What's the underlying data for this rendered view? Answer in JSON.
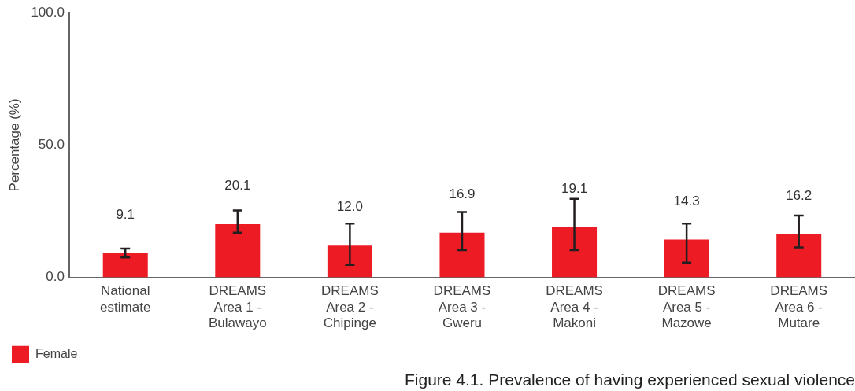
{
  "chart_data": {
    "type": "bar",
    "title": "Figure 4.1. Prevalence of having experienced sexual violence",
    "ylabel": "Percentage (%)",
    "categories": [
      "National estimate",
      "DREAMS Area 1 - Bulawayo",
      "DREAMS Area 2 - Chipinge",
      "DREAMS Area 3 - Gweru",
      "DREAMS Area 4 - Makoni",
      "DREAMS Area 5 - Mazowe",
      "DREAMS Area 6 - Mutare"
    ],
    "series": [
      {
        "name": "Female",
        "color": "#ed1c24",
        "values": [
          9.1,
          20.1,
          12.0,
          16.9,
          19.1,
          14.3,
          16.2
        ],
        "errors": [
          [
            7.5,
            10.9
          ],
          [
            16.9,
            25.3
          ],
          [
            4.7,
            20.3
          ],
          [
            10.3,
            24.7
          ],
          [
            10.3,
            29.7
          ],
          [
            5.6,
            20.3
          ],
          [
            11.3,
            23.4
          ]
        ],
        "value_labels": [
          "9.1",
          "20.1",
          "12.0",
          "16.9",
          "19.1",
          "14.3",
          "16.2"
        ]
      }
    ],
    "ylim": [
      0,
      100
    ],
    "yticks": [
      {
        "value": 0,
        "label": "0.0"
      },
      {
        "value": 50,
        "label": "50.0"
      },
      {
        "value": 100,
        "label": "100.0"
      }
    ],
    "grid": false,
    "legend": "bottom left"
  }
}
